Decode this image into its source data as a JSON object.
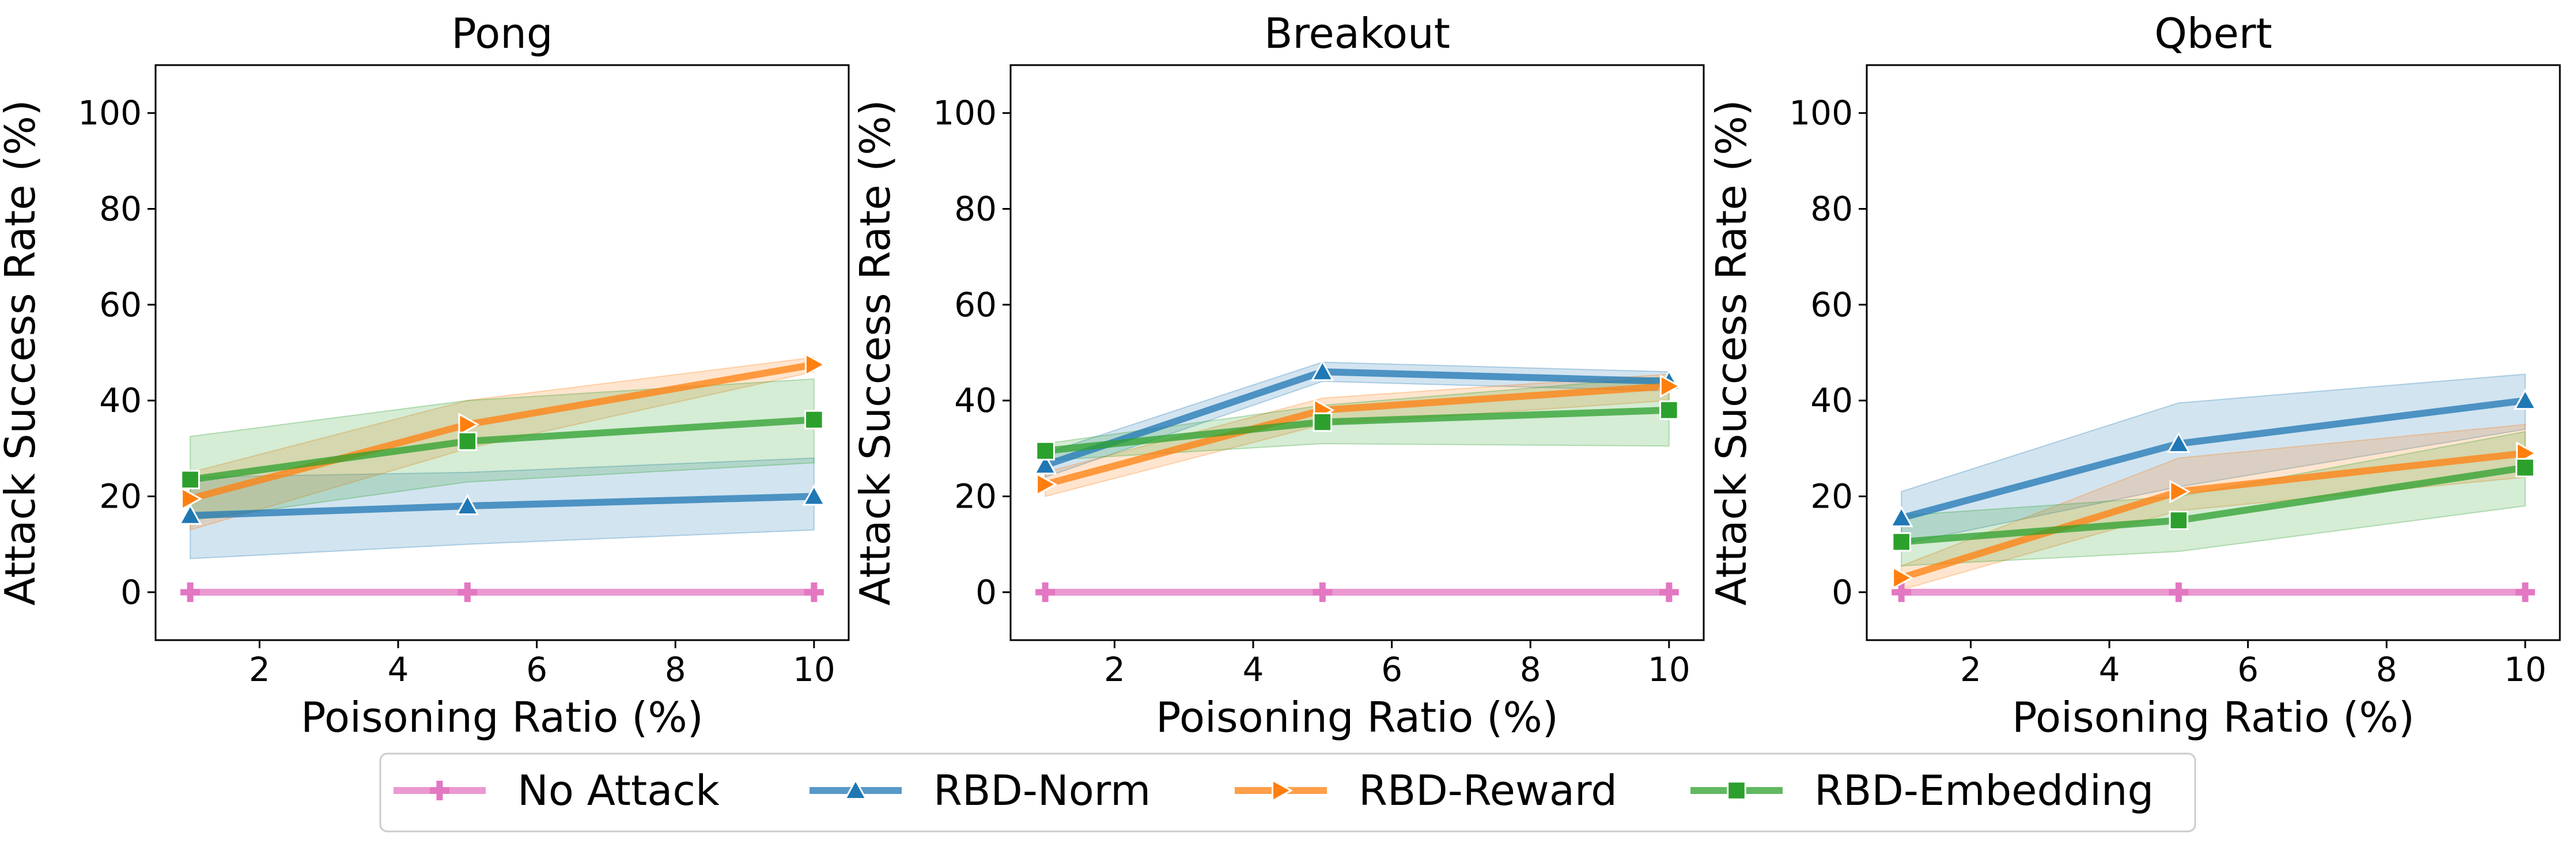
{
  "chart_data": [
    {
      "type": "line",
      "title": "Pong",
      "xlabel": "Poisoning Ratio (%)",
      "ylabel": "Attack Success Rate (%)",
      "xlim": [
        0.5,
        10.5
      ],
      "ylim": [
        -10,
        110
      ],
      "xticks": [
        2,
        4,
        6,
        8,
        10
      ],
      "yticks": [
        0,
        20,
        40,
        60,
        80,
        100
      ],
      "x": [
        1,
        5,
        10
      ],
      "series": [
        {
          "name": "No Attack",
          "values": [
            0,
            0,
            0
          ],
          "lower": [
            0,
            0,
            0
          ],
          "upper": [
            0,
            0,
            0
          ]
        },
        {
          "name": "RBD-Norm",
          "values": [
            16,
            18,
            20
          ],
          "lower": [
            7,
            10,
            13
          ],
          "upper": [
            24,
            25,
            28
          ]
        },
        {
          "name": "RBD-Reward",
          "values": [
            19.5,
            35,
            47.5
          ],
          "lower": [
            13,
            30,
            46
          ],
          "upper": [
            25,
            40,
            49
          ]
        },
        {
          "name": "RBD-Embedding",
          "values": [
            23.5,
            31.5,
            36
          ],
          "lower": [
            15,
            23,
            27
          ],
          "upper": [
            32.5,
            40,
            44.5
          ]
        }
      ]
    },
    {
      "type": "line",
      "title": "Breakout",
      "xlabel": "Poisoning Ratio (%)",
      "ylabel": "Attack Success Rate (%)",
      "xlim": [
        0.5,
        10.5
      ],
      "ylim": [
        -10,
        110
      ],
      "xticks": [
        2,
        4,
        6,
        8,
        10
      ],
      "yticks": [
        0,
        20,
        40,
        60,
        80,
        100
      ],
      "x": [
        1,
        5,
        10
      ],
      "series": [
        {
          "name": "No Attack",
          "values": [
            0,
            0,
            0
          ],
          "lower": [
            0,
            0,
            0
          ],
          "upper": [
            0,
            0,
            0
          ]
        },
        {
          "name": "RBD-Norm",
          "values": [
            26.5,
            46,
            44
          ],
          "lower": [
            24,
            44,
            42
          ],
          "upper": [
            29,
            48,
            46
          ]
        },
        {
          "name": "RBD-Reward",
          "values": [
            22.5,
            38,
            43
          ],
          "lower": [
            20,
            35,
            40
          ],
          "upper": [
            25,
            40.5,
            45.5
          ]
        },
        {
          "name": "RBD-Embedding",
          "values": [
            29.5,
            35.5,
            38
          ],
          "lower": [
            27.5,
            31,
            30.5
          ],
          "upper": [
            31,
            39,
            45
          ]
        }
      ]
    },
    {
      "type": "line",
      "title": "Qbert",
      "xlabel": "Poisoning Ratio (%)",
      "ylabel": "Attack Success Rate (%)",
      "xlim": [
        0.5,
        10.5
      ],
      "ylim": [
        -10,
        110
      ],
      "xticks": [
        2,
        4,
        6,
        8,
        10
      ],
      "yticks": [
        0,
        20,
        40,
        60,
        80,
        100
      ],
      "x": [
        1,
        5,
        10
      ],
      "series": [
        {
          "name": "No Attack",
          "values": [
            0,
            0,
            0
          ],
          "lower": [
            0,
            0,
            0
          ],
          "upper": [
            0,
            0,
            0
          ]
        },
        {
          "name": "RBD-Norm",
          "values": [
            15.5,
            31,
            40
          ],
          "lower": [
            10,
            22,
            34
          ],
          "upper": [
            21,
            39.5,
            45.5
          ]
        },
        {
          "name": "RBD-Reward",
          "values": [
            3,
            21,
            29
          ],
          "lower": [
            0.5,
            17,
            24
          ],
          "upper": [
            5.5,
            28,
            35
          ]
        },
        {
          "name": "RBD-Embedding",
          "values": [
            10.5,
            15,
            26
          ],
          "lower": [
            5.5,
            8.5,
            18
          ],
          "upper": [
            16,
            20,
            33.5
          ]
        }
      ]
    }
  ],
  "legend": {
    "placement": "bottom-center",
    "entries": [
      {
        "label": "No Attack",
        "color": "#e377c2",
        "marker": "plus"
      },
      {
        "label": "RBD-Norm",
        "color": "#1f77b4",
        "marker": "triangle"
      },
      {
        "label": "RBD-Reward",
        "color": "#ff7f0e",
        "marker": "triangle-right"
      },
      {
        "label": "RBD-Embedding",
        "color": "#2ca02c",
        "marker": "square"
      }
    ]
  }
}
